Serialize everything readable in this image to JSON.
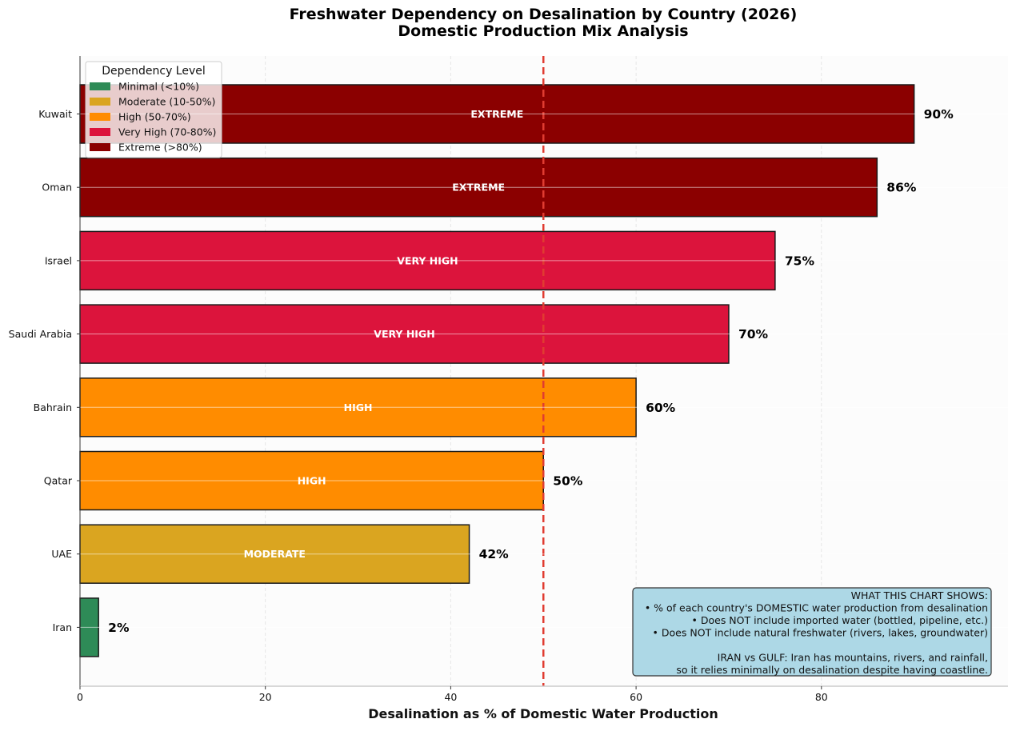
{
  "chart_data": {
    "type": "bar",
    "orientation": "horizontal",
    "title": "Freshwater Dependency on Desalination by Country (2026)",
    "subtitle": "Domestic Production Mix Analysis",
    "xlabel": "Desalination as % of Domestic Water Production",
    "ylabel": "",
    "xlim": [
      0,
      100
    ],
    "xticks": [
      0,
      20,
      40,
      60,
      80
    ],
    "grid": true,
    "reference_line": {
      "x": 50,
      "style": "dashed",
      "color": "#e03c31"
    },
    "categories": [
      "Kuwait",
      "Oman",
      "Israel",
      "Saudi Arabia",
      "Bahrain",
      "Qatar",
      "UAE",
      "Iran"
    ],
    "values": [
      90,
      86,
      75,
      70,
      60,
      50,
      42,
      2
    ],
    "value_labels": [
      "90%",
      "86%",
      "75%",
      "70%",
      "60%",
      "50%",
      "42%",
      "2%"
    ],
    "inner_labels": [
      "EXTREME",
      "EXTREME",
      "VERY HIGH",
      "VERY HIGH",
      "HIGH",
      "HIGH",
      "MODERATE",
      ""
    ],
    "bar_colors": [
      "#8b0000",
      "#8b0000",
      "#dc143c",
      "#dc143c",
      "#ff8c00",
      "#ff8c00",
      "#daa520",
      "#2e8b57"
    ],
    "legend": {
      "title": "Dependency Level",
      "placement": "top-left",
      "entries": [
        {
          "label": "Minimal (<10%)",
          "color": "#2e8b57"
        },
        {
          "label": "Moderate (10-50%)",
          "color": "#daa520"
        },
        {
          "label": "High (50-70%)",
          "color": "#ff8c00"
        },
        {
          "label": "Very High (70-80%)",
          "color": "#dc143c"
        },
        {
          "label": "Extreme (>80%)",
          "color": "#8b0000"
        }
      ]
    },
    "annotation": {
      "placement": "bottom-right",
      "background": "#add8e6",
      "lines": [
        "WHAT THIS CHART SHOWS:",
        "• % of each country's DOMESTIC water production from desalination",
        "• Does NOT include imported water (bottled, pipeline, etc.)",
        "• Does NOT include natural freshwater (rivers, lakes, groundwater)",
        "",
        "IRAN vs GULF: Iran has mountains, rivers, and rainfall,",
        "so it relies minimally on desalination despite having coastline."
      ]
    }
  }
}
